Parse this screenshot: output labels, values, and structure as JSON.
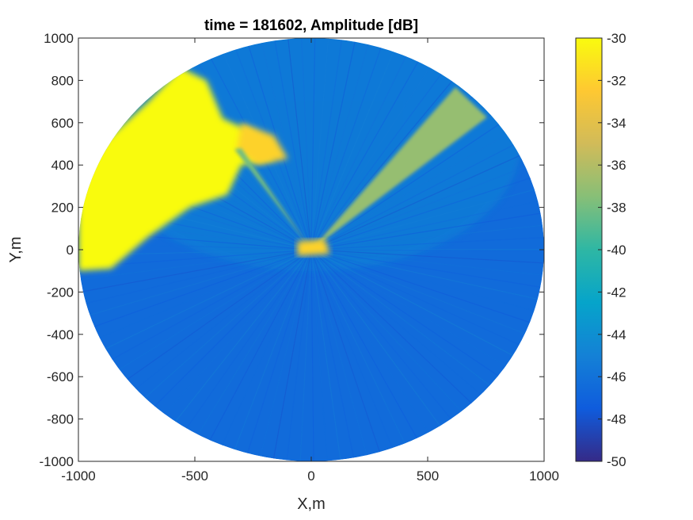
{
  "chart_data": {
    "type": "heatmap",
    "title": "time = 181602, Amplitude [dB]",
    "xlabel": "X,m",
    "ylabel": "Y,m",
    "xlim": [
      -1000,
      1000
    ],
    "ylim": [
      -1000,
      1000
    ],
    "xticks": [
      -1000,
      -500,
      0,
      500,
      1000
    ],
    "yticks": [
      -1000,
      -800,
      -600,
      -400,
      -200,
      0,
      200,
      400,
      600,
      800,
      1000
    ],
    "colorbar": {
      "range": [
        -50,
        -30
      ],
      "ticks": [
        -30,
        -32,
        -34,
        -36,
        -38,
        -40,
        -42,
        -44,
        -46,
        -48,
        -50
      ],
      "colormap": [
        "#352a87",
        "#0f5cdd",
        "#1481d6",
        "#06a4ca",
        "#2eb7a4",
        "#87bf77",
        "#d1bb59",
        "#fec832",
        "#f9fb0e"
      ]
    },
    "coverage": {
      "shape": "disc",
      "center": [
        0,
        0
      ],
      "radius": 1000,
      "background_value": -46.5
    },
    "features": [
      {
        "name": "strong-return-northwest",
        "value": -30,
        "points": [
          [
            -1000,
            -100
          ],
          [
            -1000,
            300
          ],
          [
            -900,
            500
          ],
          [
            -700,
            700
          ],
          [
            -560,
            860
          ],
          [
            -450,
            800
          ],
          [
            -380,
            620
          ],
          [
            -260,
            560
          ],
          [
            -160,
            430
          ],
          [
            -300,
            400
          ],
          [
            -360,
            260
          ],
          [
            -520,
            200
          ],
          [
            -700,
            60
          ],
          [
            -860,
            -90
          ]
        ]
      },
      {
        "name": "return-cluster",
        "value": -32,
        "points": [
          [
            -300,
            600
          ],
          [
            -160,
            540
          ],
          [
            -100,
            430
          ],
          [
            -230,
            400
          ],
          [
            -320,
            470
          ]
        ]
      },
      {
        "name": "beam-northeast",
        "value": -37,
        "points": [
          [
            0,
            0
          ],
          [
            619,
            768
          ],
          [
            755,
            625
          ]
        ]
      },
      {
        "name": "beam-northwest",
        "value": -38,
        "points": [
          [
            0,
            0
          ],
          [
            -330,
            475
          ],
          [
            -300,
            480
          ]
        ]
      },
      {
        "name": "center-return",
        "value": -32,
        "points": [
          [
            -60,
            -30
          ],
          [
            -60,
            40
          ],
          [
            60,
            50
          ],
          [
            80,
            -20
          ]
        ]
      }
    ]
  }
}
